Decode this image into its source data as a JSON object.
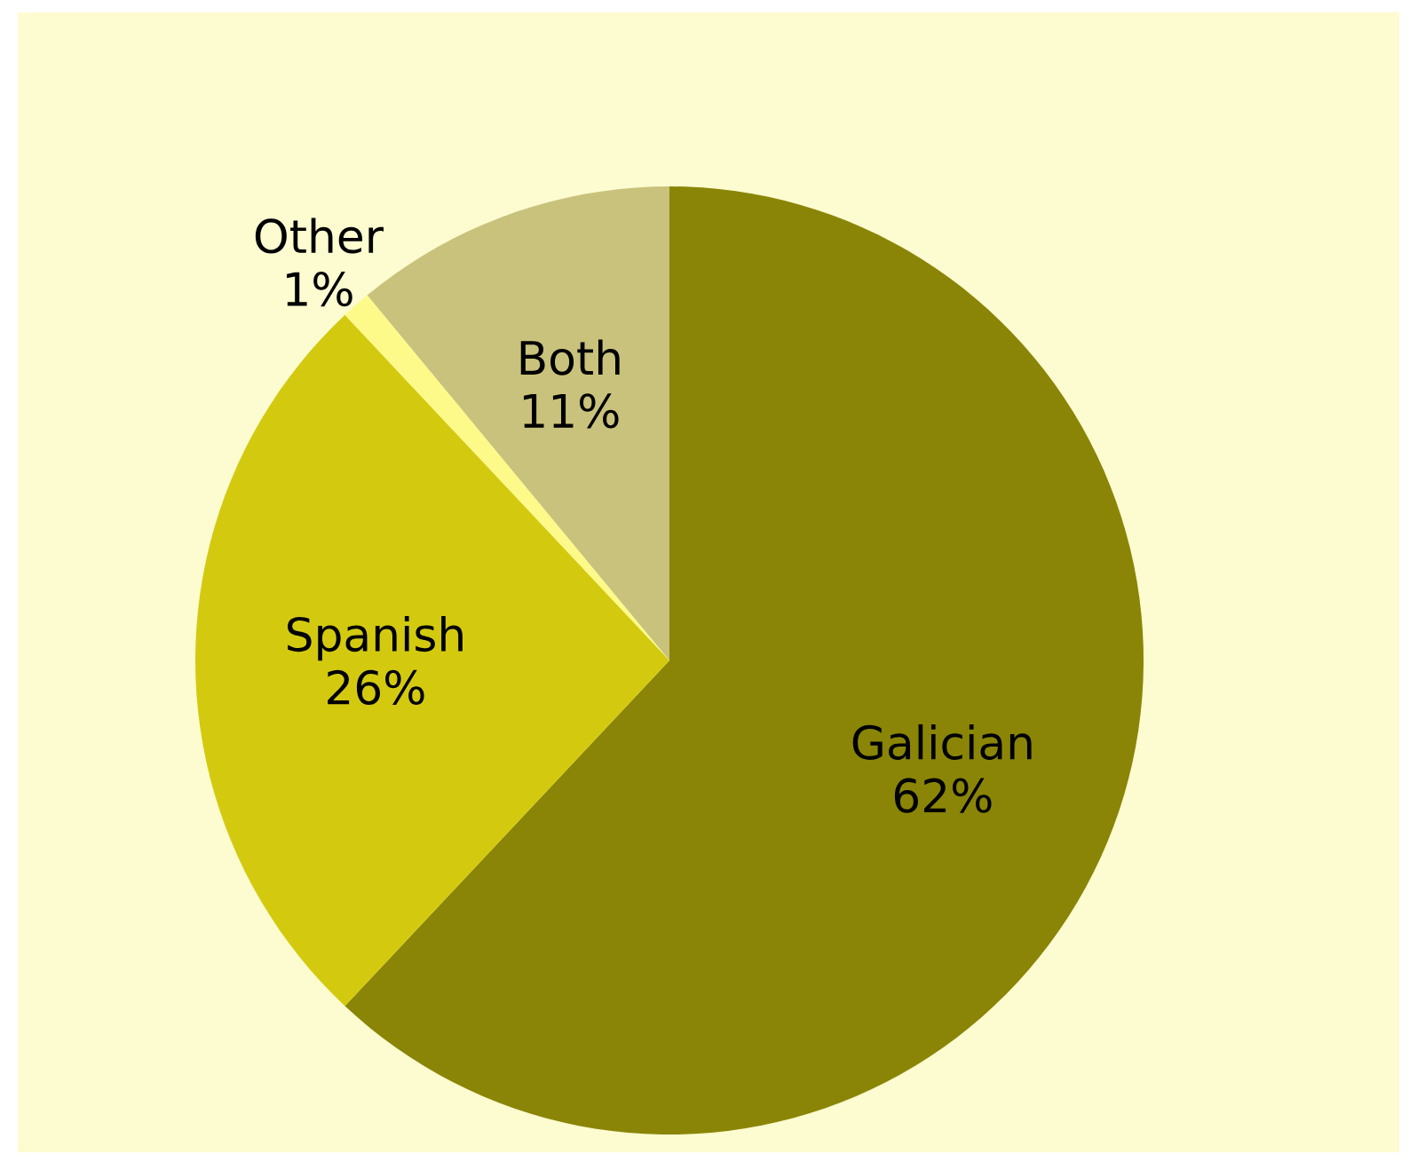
{
  "chart_data": {
    "type": "pie",
    "categories": [
      "Galician",
      "Spanish",
      "Other",
      "Both"
    ],
    "values": [
      62,
      26,
      1,
      11
    ],
    "value_labels": [
      "62%",
      "26%",
      "1%",
      "11%"
    ],
    "colors": [
      "#8a8506",
      "#d3ca10",
      "#fdfa8a",
      "#c9c27c"
    ]
  }
}
